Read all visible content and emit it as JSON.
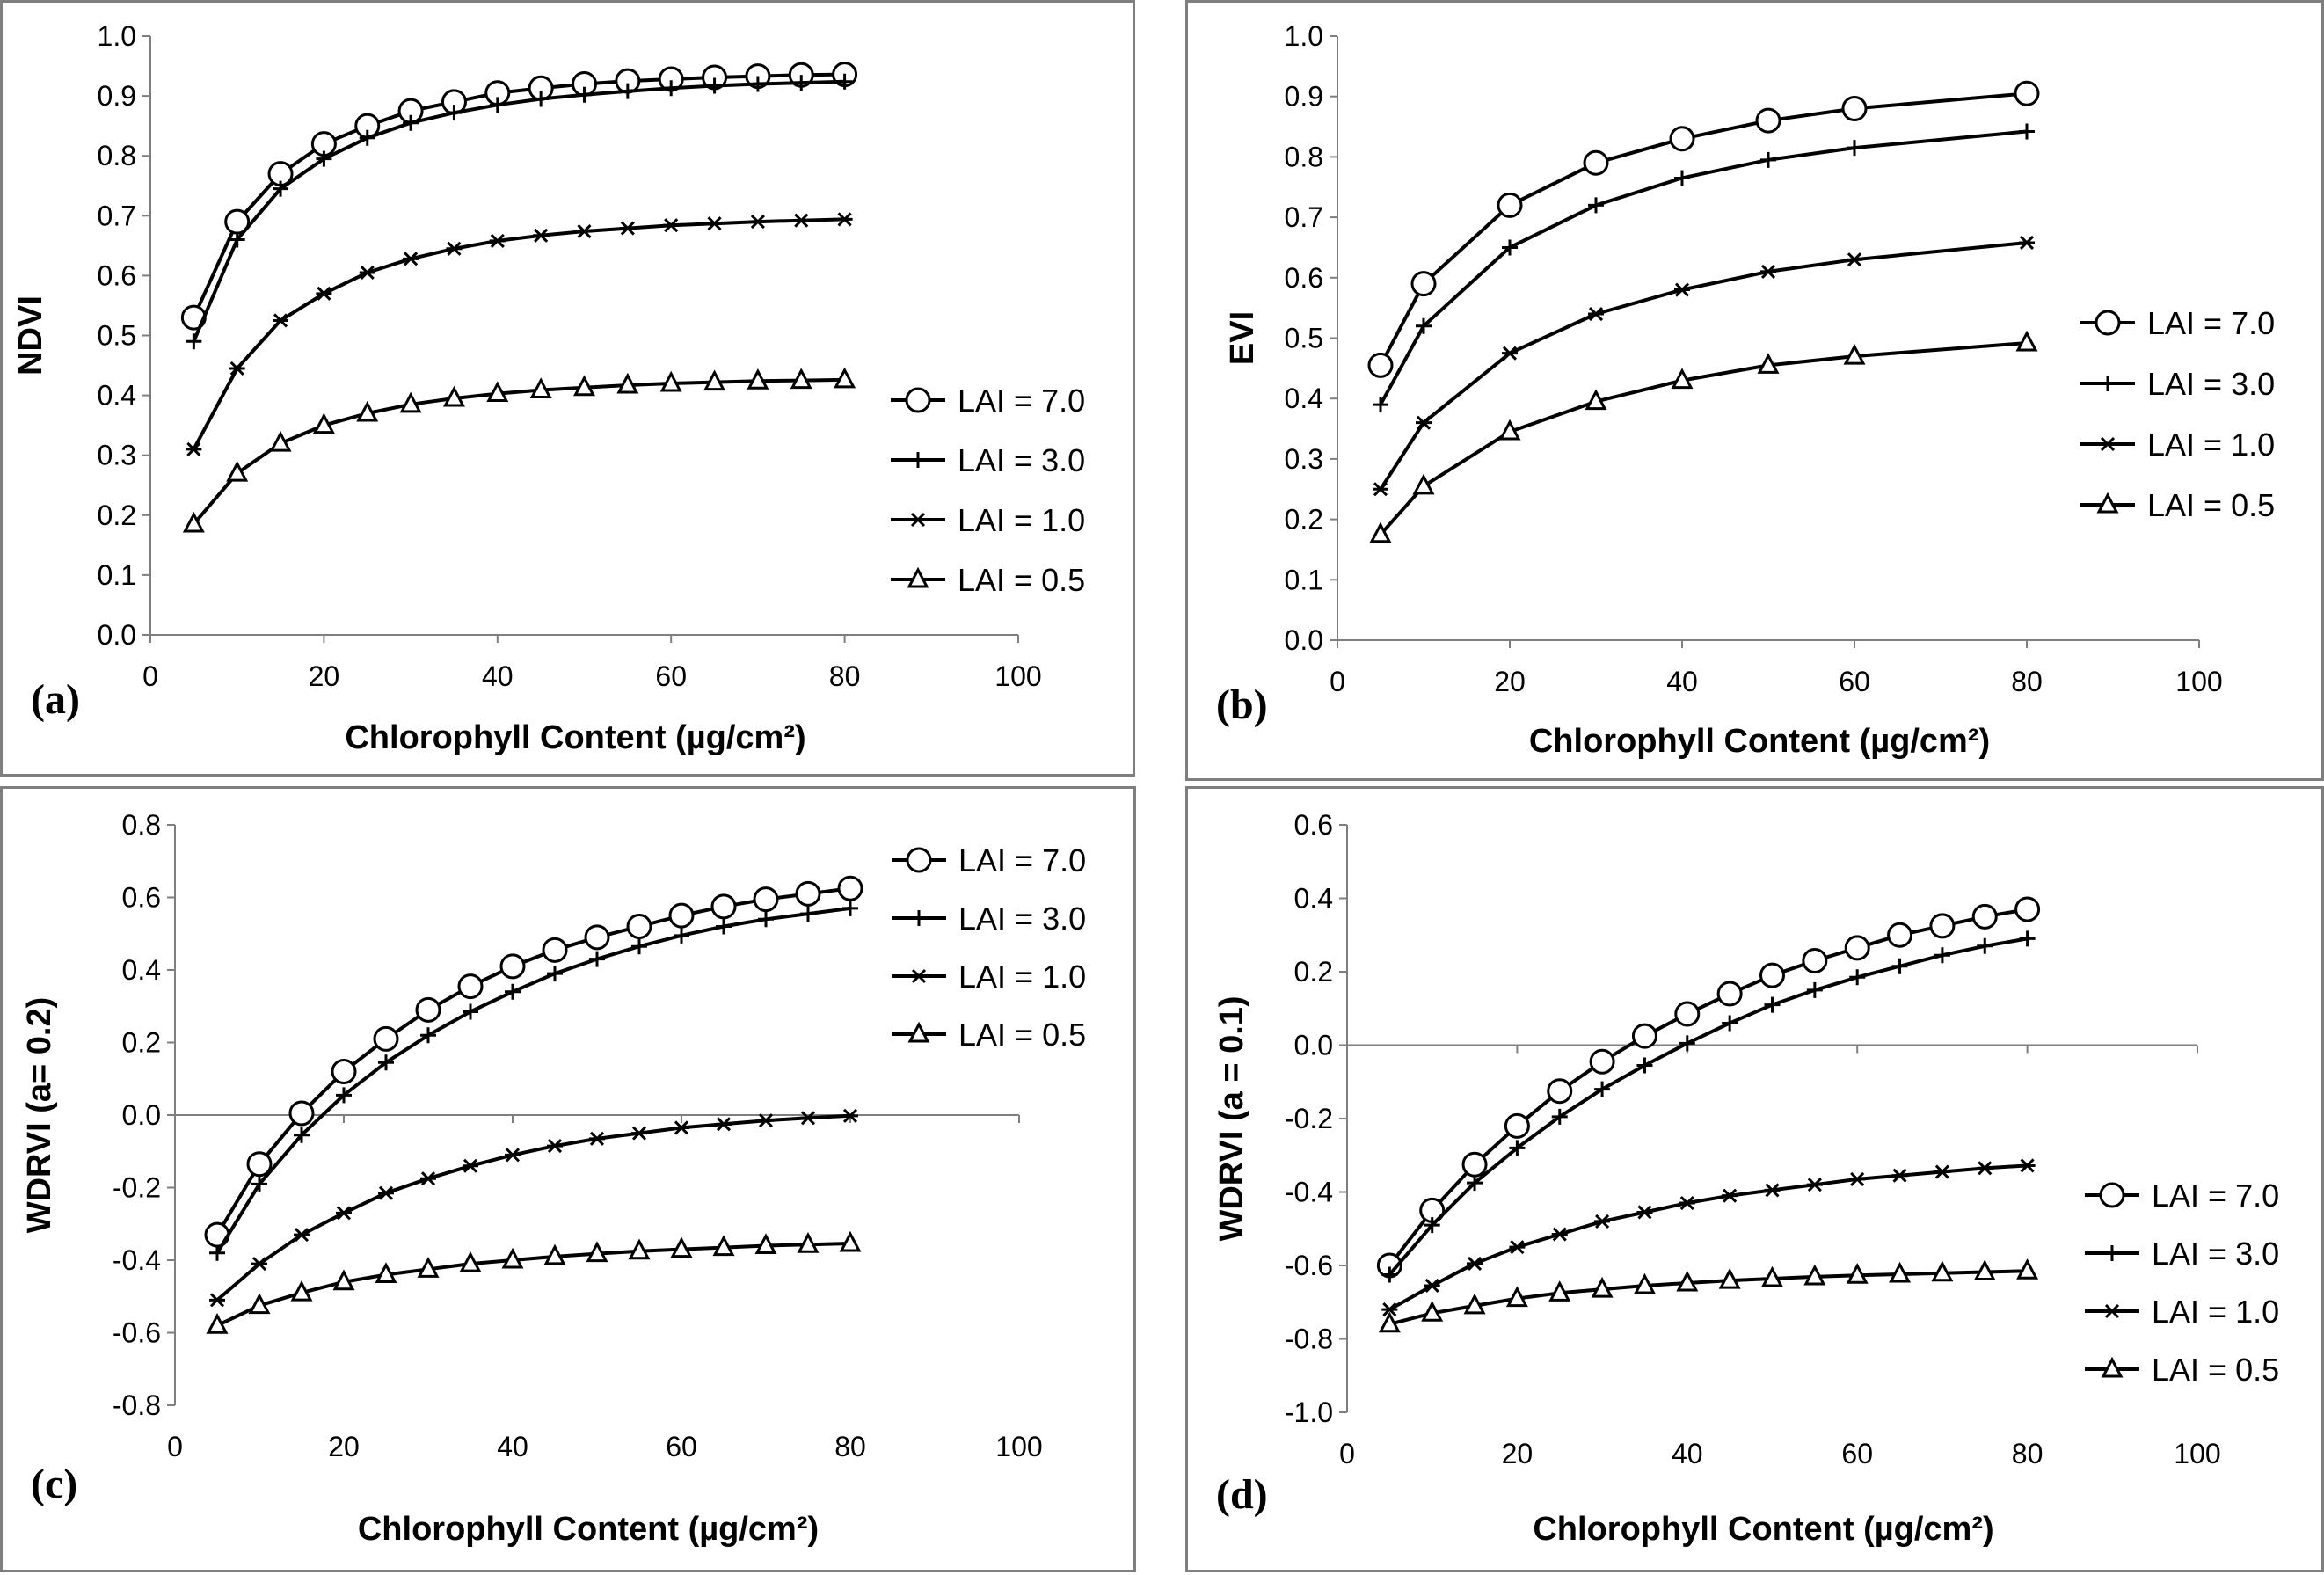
{
  "chart_data": [
    {
      "id": "a",
      "type": "line",
      "panel_label": "(a)",
      "xlabel": "Chlorophyll Content (µg/cm²)",
      "ylabel": "NDVI",
      "xlim": [
        0,
        100
      ],
      "ylim": [
        0.0,
        1.0
      ],
      "xticks": [
        0,
        20,
        40,
        60,
        80,
        100
      ],
      "yticks": [
        0.0,
        0.1,
        0.2,
        0.3,
        0.4,
        0.5,
        0.6,
        0.7,
        0.8,
        0.9,
        1.0
      ],
      "ytick_decimals": 1,
      "legend_position": "right-middle",
      "series": [
        {
          "name": "LAI = 7.0",
          "marker": "circle",
          "x": [
            5,
            10,
            15,
            20,
            25,
            30,
            35,
            40,
            45,
            50,
            55,
            60,
            65,
            70,
            75,
            80
          ],
          "y": [
            0.53,
            0.69,
            0.77,
            0.82,
            0.85,
            0.875,
            0.89,
            0.905,
            0.913,
            0.92,
            0.925,
            0.928,
            0.931,
            0.933,
            0.935,
            0.936
          ]
        },
        {
          "name": "LAI = 3.0",
          "marker": "plus",
          "x": [
            5,
            10,
            15,
            20,
            25,
            30,
            35,
            40,
            45,
            50,
            55,
            60,
            65,
            70,
            75,
            80
          ],
          "y": [
            0.49,
            0.66,
            0.745,
            0.795,
            0.83,
            0.855,
            0.872,
            0.885,
            0.895,
            0.902,
            0.908,
            0.913,
            0.917,
            0.92,
            0.922,
            0.924
          ]
        },
        {
          "name": "LAI = 1.0",
          "marker": "asterisk",
          "x": [
            5,
            10,
            15,
            20,
            25,
            30,
            35,
            40,
            45,
            50,
            55,
            60,
            65,
            70,
            75,
            80
          ],
          "y": [
            0.31,
            0.445,
            0.525,
            0.57,
            0.605,
            0.628,
            0.645,
            0.658,
            0.667,
            0.674,
            0.679,
            0.684,
            0.687,
            0.69,
            0.692,
            0.694
          ]
        },
        {
          "name": "LAI = 0.5",
          "marker": "triangle",
          "x": [
            5,
            10,
            15,
            20,
            25,
            30,
            35,
            40,
            45,
            50,
            55,
            60,
            65,
            70,
            75,
            80
          ],
          "y": [
            0.185,
            0.27,
            0.32,
            0.35,
            0.37,
            0.385,
            0.395,
            0.403,
            0.409,
            0.413,
            0.417,
            0.42,
            0.422,
            0.424,
            0.425,
            0.426
          ]
        }
      ]
    },
    {
      "id": "b",
      "type": "line",
      "panel_label": "(b)",
      "xlabel": "Chlorophyll Content (µg/cm²)",
      "ylabel": "EVI",
      "xlim": [
        0,
        100
      ],
      "ylim": [
        0.0,
        1.0
      ],
      "xticks": [
        0,
        20,
        40,
        60,
        80,
        100
      ],
      "yticks": [
        0.0,
        0.1,
        0.2,
        0.3,
        0.4,
        0.5,
        0.6,
        0.7,
        0.8,
        0.9,
        1.0
      ],
      "ytick_decimals": 1,
      "legend_position": "right-middle",
      "series": [
        {
          "name": "LAI = 7.0",
          "marker": "circle",
          "x": [
            5,
            10,
            20,
            30,
            40,
            50,
            60,
            80
          ],
          "y": [
            0.455,
            0.59,
            0.72,
            0.79,
            0.83,
            0.86,
            0.88,
            0.905
          ]
        },
        {
          "name": "LAI = 3.0",
          "marker": "plus",
          "x": [
            5,
            10,
            20,
            30,
            40,
            50,
            60,
            80
          ],
          "y": [
            0.39,
            0.52,
            0.65,
            0.72,
            0.765,
            0.795,
            0.815,
            0.842
          ]
        },
        {
          "name": "LAI = 1.0",
          "marker": "asterisk",
          "x": [
            5,
            10,
            20,
            30,
            40,
            50,
            60,
            80
          ],
          "y": [
            0.25,
            0.36,
            0.475,
            0.54,
            0.58,
            0.61,
            0.63,
            0.658
          ]
        },
        {
          "name": "LAI = 0.5",
          "marker": "triangle",
          "x": [
            5,
            10,
            20,
            30,
            40,
            50,
            60,
            80
          ],
          "y": [
            0.175,
            0.255,
            0.345,
            0.395,
            0.43,
            0.455,
            0.47,
            0.492
          ]
        }
      ]
    },
    {
      "id": "c",
      "type": "line",
      "panel_label": "(c)",
      "xlabel": "Chlorophyll Content (µg/cm²)",
      "ylabel": "WDRVI (a= 0.2)",
      "xlim": [
        0,
        100
      ],
      "ylim": [
        -0.8,
        0.8
      ],
      "xticks": [
        0,
        20,
        40,
        60,
        80,
        100
      ],
      "yticks": [
        -0.8,
        -0.6,
        -0.4,
        -0.2,
        0.0,
        0.2,
        0.4,
        0.6,
        0.8
      ],
      "ytick_decimals": 1,
      "legend_position": "top-right",
      "series": [
        {
          "name": "LAI = 7.0",
          "marker": "circle",
          "x": [
            5,
            10,
            15,
            20,
            25,
            30,
            35,
            40,
            45,
            50,
            55,
            60,
            65,
            70,
            75,
            80
          ],
          "y": [
            -0.33,
            -0.135,
            0.005,
            0.12,
            0.21,
            0.29,
            0.355,
            0.41,
            0.455,
            0.49,
            0.52,
            0.55,
            0.575,
            0.595,
            0.61,
            0.625
          ]
        },
        {
          "name": "LAI = 3.0",
          "marker": "plus",
          "x": [
            5,
            10,
            15,
            20,
            25,
            30,
            35,
            40,
            45,
            50,
            55,
            60,
            65,
            70,
            75,
            80
          ],
          "y": [
            -0.38,
            -0.19,
            -0.055,
            0.055,
            0.145,
            0.22,
            0.285,
            0.34,
            0.39,
            0.43,
            0.465,
            0.495,
            0.52,
            0.54,
            0.555,
            0.57
          ]
        },
        {
          "name": "LAI = 1.0",
          "marker": "asterisk",
          "x": [
            5,
            10,
            15,
            20,
            25,
            30,
            35,
            40,
            45,
            50,
            55,
            60,
            65,
            70,
            75,
            80
          ],
          "y": [
            -0.51,
            -0.41,
            -0.33,
            -0.27,
            -0.215,
            -0.175,
            -0.14,
            -0.11,
            -0.085,
            -0.065,
            -0.05,
            -0.035,
            -0.025,
            -0.015,
            -0.008,
            -0.002
          ]
        },
        {
          "name": "LAI = 0.5",
          "marker": "triangle",
          "x": [
            5,
            10,
            15,
            20,
            25,
            30,
            35,
            40,
            45,
            50,
            55,
            60,
            65,
            70,
            75,
            80
          ],
          "y": [
            -0.58,
            -0.525,
            -0.49,
            -0.46,
            -0.44,
            -0.425,
            -0.41,
            -0.4,
            -0.39,
            -0.382,
            -0.375,
            -0.37,
            -0.365,
            -0.36,
            -0.357,
            -0.354
          ]
        }
      ]
    },
    {
      "id": "d",
      "type": "line",
      "panel_label": "(d)",
      "xlabel": "Chlorophyll Content (µg/cm²)",
      "ylabel": "WDRVI (a = 0.1)",
      "xlim": [
        0,
        100
      ],
      "ylim": [
        -1.0,
        0.6
      ],
      "xticks": [
        0,
        20,
        40,
        60,
        80,
        100
      ],
      "yticks": [
        -1.0,
        -0.8,
        -0.6,
        -0.4,
        -0.2,
        0.0,
        0.2,
        0.4,
        0.6
      ],
      "ytick_decimals": 1,
      "legend_position": "bottom-right",
      "series": [
        {
          "name": "LAI = 7.0",
          "marker": "circle",
          "x": [
            5,
            10,
            15,
            20,
            25,
            30,
            35,
            40,
            45,
            50,
            55,
            60,
            65,
            70,
            75,
            80
          ],
          "y": [
            -0.6,
            -0.45,
            -0.325,
            -0.22,
            -0.125,
            -0.045,
            0.025,
            0.085,
            0.14,
            0.19,
            0.23,
            0.265,
            0.3,
            0.325,
            0.35,
            0.37
          ]
        },
        {
          "name": "LAI = 3.0",
          "marker": "plus",
          "x": [
            5,
            10,
            15,
            20,
            25,
            30,
            35,
            40,
            45,
            50,
            55,
            60,
            65,
            70,
            75,
            80
          ],
          "y": [
            -0.625,
            -0.49,
            -0.375,
            -0.28,
            -0.195,
            -0.12,
            -0.055,
            0.005,
            0.06,
            0.11,
            0.15,
            0.185,
            0.215,
            0.245,
            0.27,
            0.29
          ]
        },
        {
          "name": "LAI = 1.0",
          "marker": "asterisk",
          "x": [
            5,
            10,
            15,
            20,
            25,
            30,
            35,
            40,
            45,
            50,
            55,
            60,
            65,
            70,
            75,
            80
          ],
          "y": [
            -0.72,
            -0.655,
            -0.595,
            -0.55,
            -0.515,
            -0.48,
            -0.455,
            -0.43,
            -0.41,
            -0.395,
            -0.38,
            -0.365,
            -0.355,
            -0.345,
            -0.335,
            -0.328
          ]
        },
        {
          "name": "LAI = 0.5",
          "marker": "triangle",
          "x": [
            5,
            10,
            15,
            20,
            25,
            30,
            35,
            40,
            45,
            50,
            55,
            60,
            65,
            70,
            75,
            80
          ],
          "y": [
            -0.76,
            -0.73,
            -0.71,
            -0.69,
            -0.675,
            -0.665,
            -0.655,
            -0.648,
            -0.641,
            -0.636,
            -0.631,
            -0.627,
            -0.624,
            -0.621,
            -0.618,
            -0.615
          ]
        }
      ]
    }
  ]
}
